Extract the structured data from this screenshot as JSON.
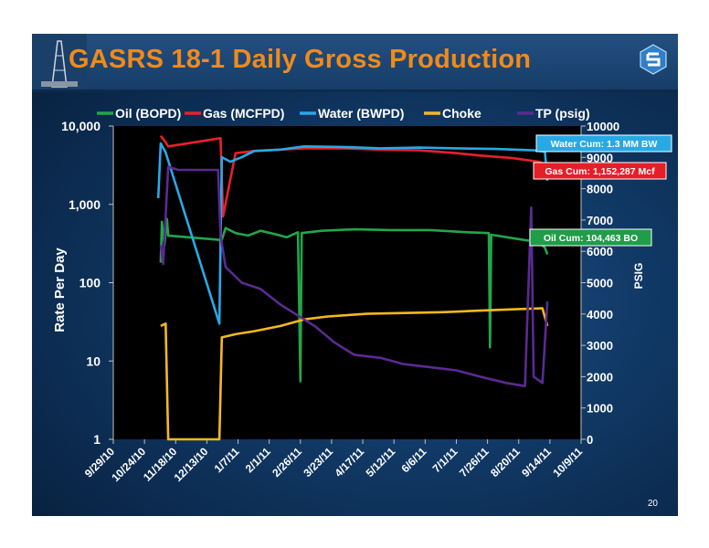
{
  "slide": {
    "title": "GASRS 18-1 Daily Gross Production",
    "page_number": "20",
    "logo_icon": "company-logo-icon",
    "rig_icon": "drilling-rig-icon"
  },
  "chart_data": {
    "type": "line",
    "ylabel": "Rate Per Day",
    "ylabel_right": "PSIG",
    "y_scale": "log",
    "ylim": [
      1,
      10000
    ],
    "y_ticks": [
      "1",
      "10",
      "100",
      "1,000",
      "10,000"
    ],
    "y2lim": [
      0,
      10000
    ],
    "y2_ticks": [
      "0",
      "1000",
      "2000",
      "3000",
      "4000",
      "5000",
      "6000",
      "7000",
      "8000",
      "9000",
      "10000"
    ],
    "x_range": [
      "2010-09-29",
      "2011-10-09"
    ],
    "x_ticks": [
      "9/29/10",
      "10/24/10",
      "11/18/10",
      "12/13/10",
      "1/7/11",
      "2/1/11",
      "2/26/11",
      "3/23/11",
      "4/17/11",
      "5/12/11",
      "6/6/11",
      "7/1/11",
      "7/26/11",
      "8/20/11",
      "9/14/11",
      "10/9/11"
    ],
    "legend_position": "top",
    "series": [
      {
        "name": "Oil (BOPD)",
        "color": "#22a64a",
        "axis": "left",
        "points": [
          [
            "2010-11-06",
            180
          ],
          [
            "2010-11-07",
            600
          ],
          [
            "2010-11-09",
            300
          ],
          [
            "2010-11-11",
            650
          ],
          [
            "2010-11-12",
            400
          ],
          [
            "2010-12-25",
            350
          ],
          [
            "2010-12-28",
            500
          ],
          [
            "2011-01-05",
            430
          ],
          [
            "2011-01-15",
            400
          ],
          [
            "2011-01-25",
            460
          ],
          [
            "2011-02-05",
            420
          ],
          [
            "2011-02-15",
            380
          ],
          [
            "2011-02-24",
            440
          ],
          [
            "2011-02-26",
            5.5
          ],
          [
            "2011-02-27",
            430
          ],
          [
            "2011-03-15",
            460
          ],
          [
            "2011-04-10",
            480
          ],
          [
            "2011-05-10",
            470
          ],
          [
            "2011-06-10",
            470
          ],
          [
            "2011-07-10",
            440
          ],
          [
            "2011-07-27",
            430
          ],
          [
            "2011-07-28",
            15
          ],
          [
            "2011-07-29",
            410
          ],
          [
            "2011-08-20",
            360
          ],
          [
            "2011-09-05",
            330
          ],
          [
            "2011-09-10",
            280
          ],
          [
            "2011-09-12",
            230
          ]
        ]
      },
      {
        "name": "Gas (MCFPD)",
        "color": "#e8202a",
        "axis": "left",
        "points": [
          [
            "2010-11-06",
            7500
          ],
          [
            "2010-11-10",
            6200
          ],
          [
            "2010-11-12",
            5500
          ],
          [
            "2010-12-24",
            7000
          ],
          [
            "2010-12-26",
            700
          ],
          [
            "2011-01-05",
            4500
          ],
          [
            "2011-01-20",
            4800
          ],
          [
            "2011-02-10",
            5000
          ],
          [
            "2011-03-01",
            5200
          ],
          [
            "2011-04-01",
            5200
          ],
          [
            "2011-05-01",
            5000
          ],
          [
            "2011-06-01",
            4900
          ],
          [
            "2011-07-01",
            4500
          ],
          [
            "2011-07-20",
            4200
          ],
          [
            "2011-08-15",
            3900
          ],
          [
            "2011-09-05",
            3500
          ],
          [
            "2011-09-12",
            3200
          ]
        ]
      },
      {
        "name": "Water (BWPD)",
        "color": "#2aa8e6",
        "axis": "left",
        "points": [
          [
            "2010-11-04",
            1200
          ],
          [
            "2010-11-06",
            6000
          ],
          [
            "2010-11-10",
            4600
          ],
          [
            "2010-12-23",
            30
          ],
          [
            "2010-12-25",
            4000
          ],
          [
            "2011-01-01",
            3500
          ],
          [
            "2011-01-10",
            4000
          ],
          [
            "2011-01-20",
            4800
          ],
          [
            "2011-02-10",
            5000
          ],
          [
            "2011-03-01",
            5500
          ],
          [
            "2011-04-01",
            5400
          ],
          [
            "2011-05-01",
            5200
          ],
          [
            "2011-06-01",
            5300
          ],
          [
            "2011-07-01",
            5200
          ],
          [
            "2011-08-01",
            5100
          ],
          [
            "2011-09-01",
            4900
          ],
          [
            "2011-09-10",
            4700
          ],
          [
            "2011-09-12",
            2000
          ]
        ]
      },
      {
        "name": "Choke",
        "color": "#f5b820",
        "axis": "left",
        "points": [
          [
            "2010-11-06",
            28
          ],
          [
            "2010-11-10",
            30
          ],
          [
            "2010-11-12",
            1
          ],
          [
            "2010-12-23",
            1
          ],
          [
            "2010-12-25",
            20
          ],
          [
            "2011-01-05",
            22
          ],
          [
            "2011-01-20",
            24
          ],
          [
            "2011-02-10",
            28
          ],
          [
            "2011-03-01",
            34
          ],
          [
            "2011-03-20",
            37
          ],
          [
            "2011-04-20",
            40
          ],
          [
            "2011-05-20",
            41
          ],
          [
            "2011-06-20",
            42
          ],
          [
            "2011-07-20",
            44
          ],
          [
            "2011-08-20",
            46
          ],
          [
            "2011-09-08",
            47
          ],
          [
            "2011-09-12",
            28
          ]
        ]
      },
      {
        "name": "TP (psig)",
        "color": "#5b2a92",
        "axis": "right",
        "points": [
          [
            "2010-11-06",
            6200
          ],
          [
            "2010-11-08",
            5600
          ],
          [
            "2010-11-12",
            8700
          ],
          [
            "2010-11-20",
            8600
          ],
          [
            "2010-12-10",
            8600
          ],
          [
            "2010-12-22",
            8600
          ],
          [
            "2010-12-24",
            6500
          ],
          [
            "2010-12-28",
            5500
          ],
          [
            "2011-01-10",
            5000
          ],
          [
            "2011-01-25",
            4800
          ],
          [
            "2011-02-10",
            4300
          ],
          [
            "2011-02-26",
            3900
          ],
          [
            "2011-03-10",
            3600
          ],
          [
            "2011-03-25",
            3100
          ],
          [
            "2011-04-10",
            2700
          ],
          [
            "2011-05-01",
            2600
          ],
          [
            "2011-05-20",
            2400
          ],
          [
            "2011-06-10",
            2300
          ],
          [
            "2011-07-01",
            2200
          ],
          [
            "2011-07-20",
            2000
          ],
          [
            "2011-08-10",
            1800
          ],
          [
            "2011-08-25",
            1700
          ],
          [
            "2011-08-30",
            7400
          ],
          [
            "2011-09-01",
            2000
          ],
          [
            "2011-09-08",
            1800
          ],
          [
            "2011-09-12",
            4400
          ]
        ]
      }
    ],
    "annotations": [
      {
        "text": "Water Cum: 1.3 MM BW",
        "bg": "#29a9e4",
        "fg": "#ffffff"
      },
      {
        "text": "Gas Cum: 1,152,287 Mcf",
        "bg": "#e61e28",
        "fg": "#ffffff"
      },
      {
        "text": "Oil Cum: 104,463 BO",
        "bg": "#1f9d48",
        "fg": "#ffffff"
      }
    ]
  }
}
